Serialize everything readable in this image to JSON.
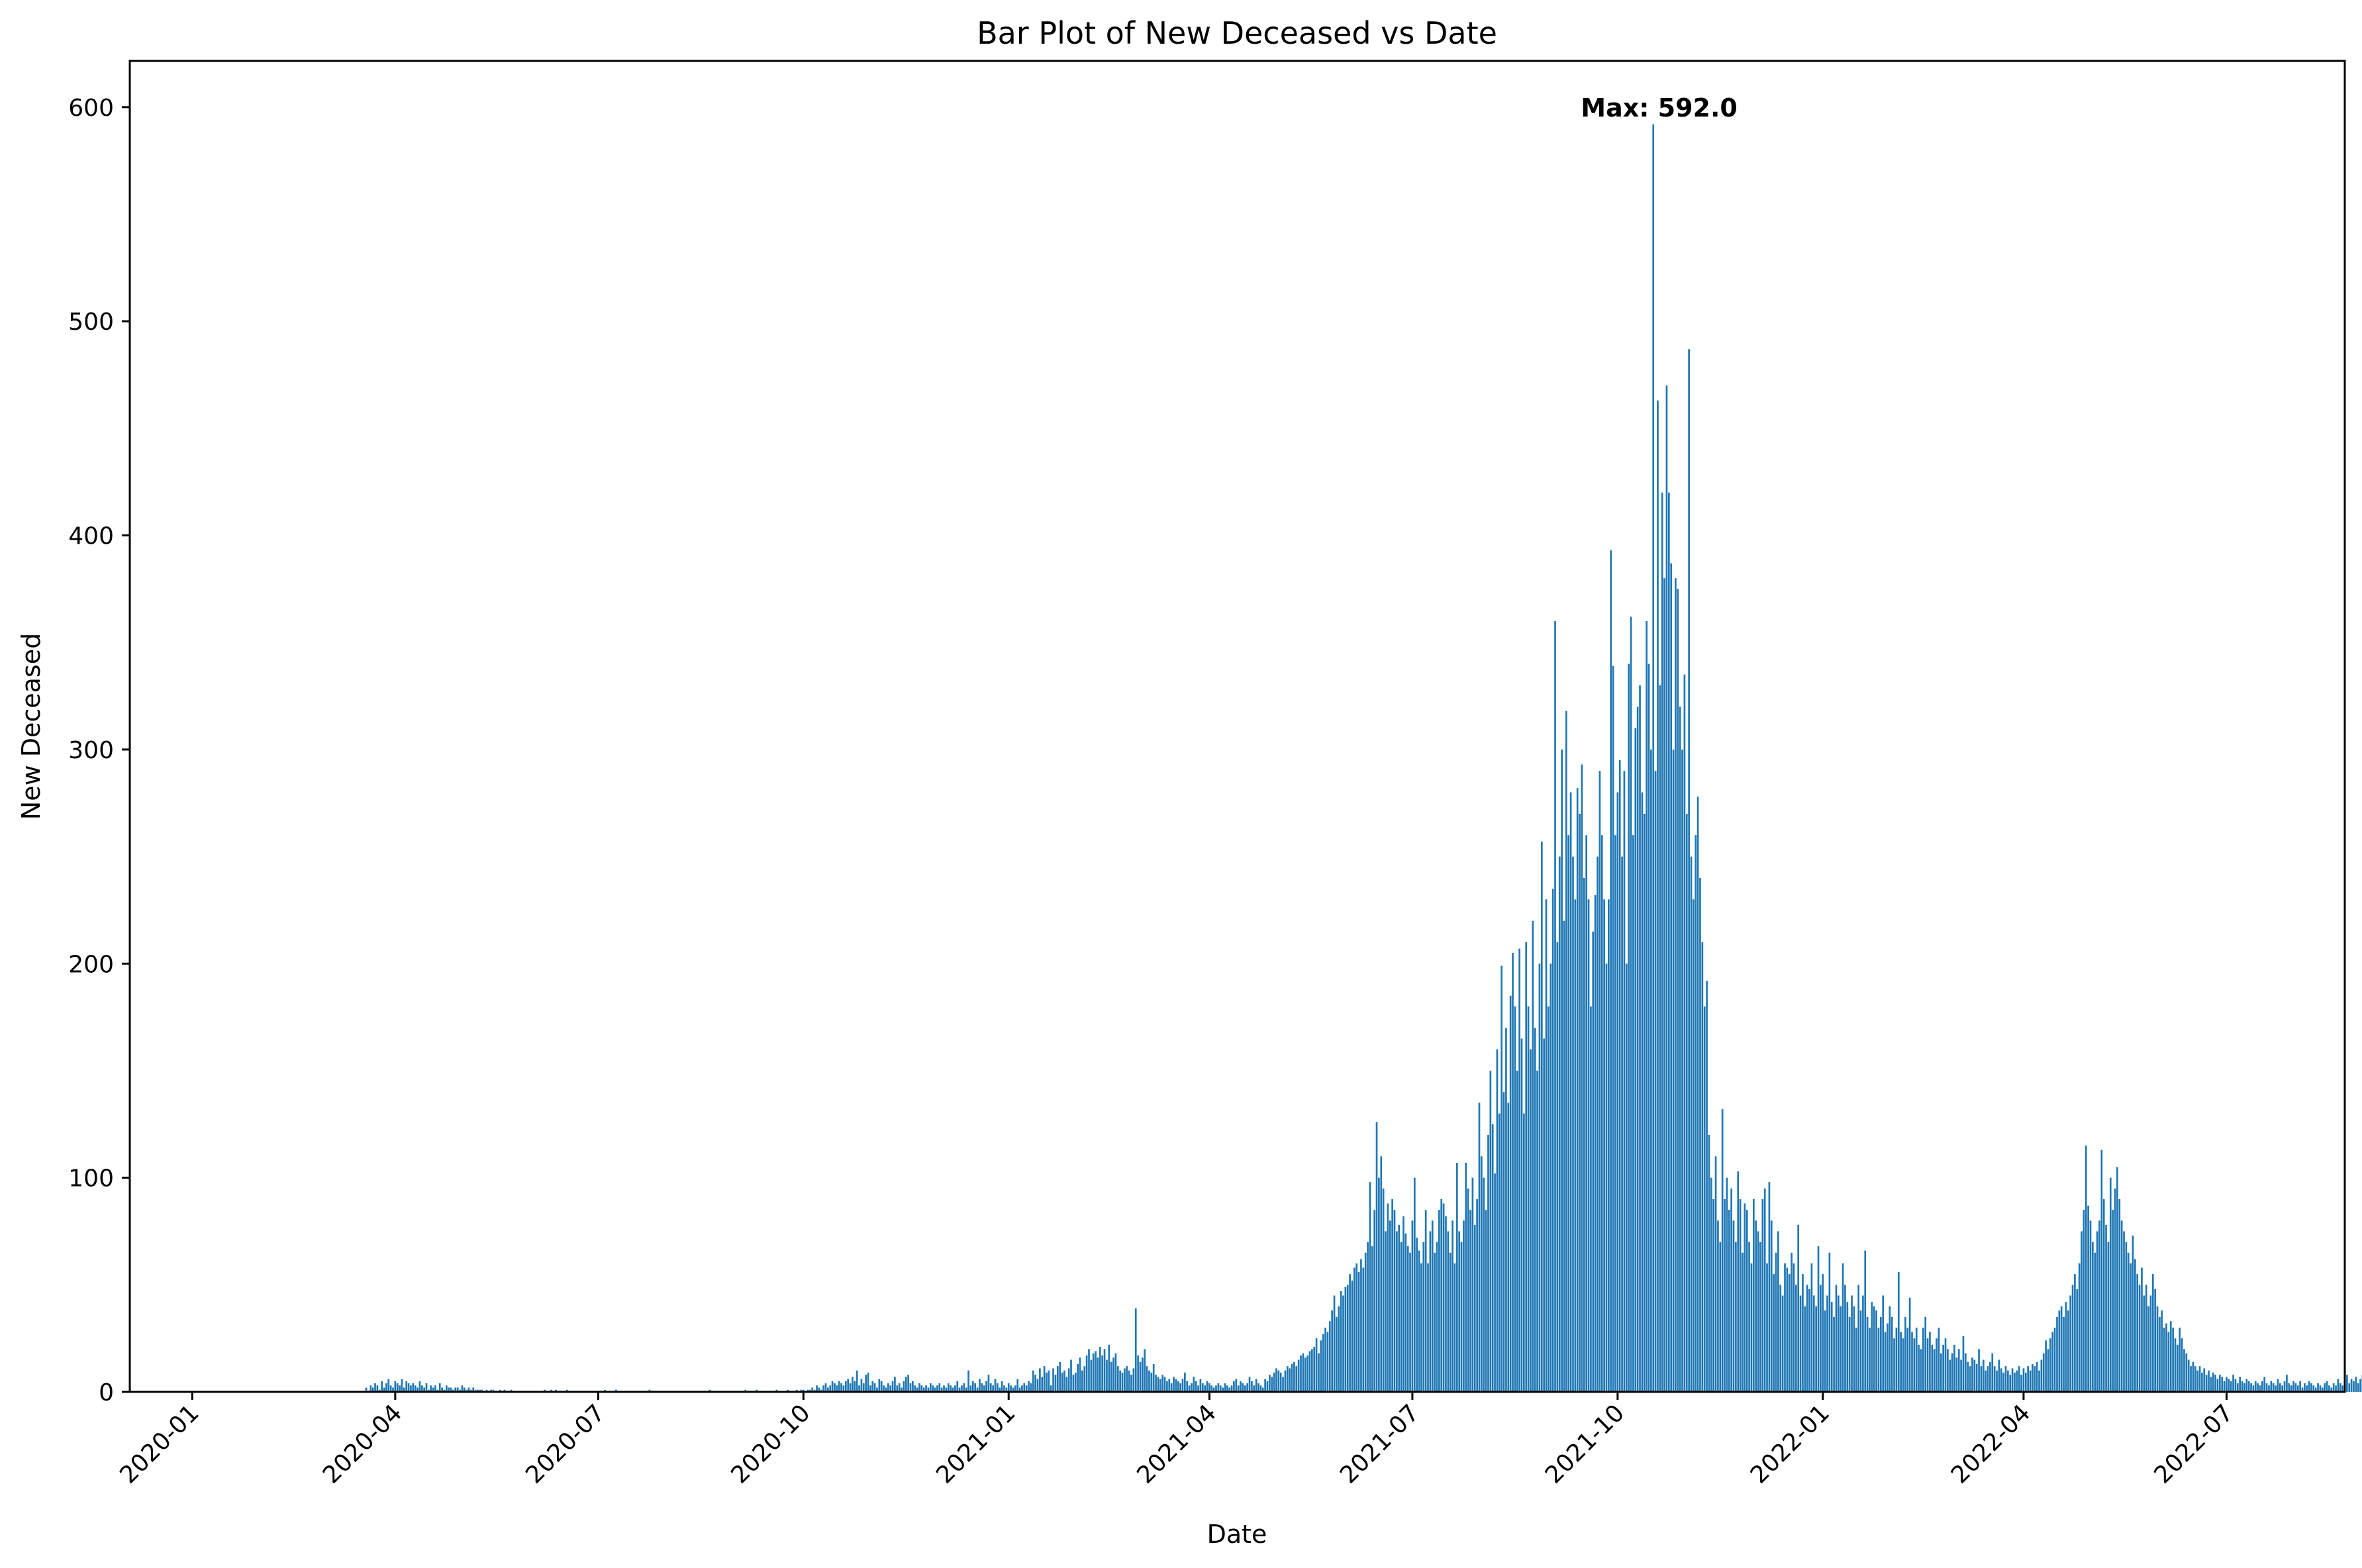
{
  "chart_data": {
    "type": "bar",
    "title": "Bar Plot of New Deceased vs Date",
    "xlabel": "Date",
    "ylabel": "New Deceased",
    "x_start": "2020-01-01",
    "x_end": "2022-07-24",
    "x_range": [
      "2019-12-04",
      "2022-08-23"
    ],
    "ylim": [
      0,
      621.6
    ],
    "y_ticks": [
      0,
      100,
      200,
      300,
      400,
      500,
      600
    ],
    "x_ticks": [
      "2020-01",
      "2020-04",
      "2020-07",
      "2020-10",
      "2021-01",
      "2021-04",
      "2021-07",
      "2021-10",
      "2022-01",
      "2022-04",
      "2022-07"
    ],
    "x_tick_dates": [
      "2020-01-01",
      "2020-04-01",
      "2020-07-01",
      "2020-10-01",
      "2021-01-01",
      "2021-04-01",
      "2021-07-01",
      "2021-10-01",
      "2022-01-01",
      "2022-04-01",
      "2022-07-01"
    ],
    "x_tick_rotation": 45,
    "grid": false,
    "bar_color": "#1f77b4",
    "annotation": {
      "text": "Max: 592.0",
      "color": "#ff0000",
      "x": "2021-09-14",
      "y": 600,
      "bold": true
    },
    "max": {
      "date": "2021-09-14",
      "value": 592.0
    },
    "series": [
      {
        "values": [
          0,
          0,
          0,
          0,
          0,
          0,
          0,
          0,
          0,
          0,
          0,
          0,
          0,
          0,
          0,
          0,
          0,
          0,
          0,
          0,
          0,
          0,
          0,
          0,
          0,
          0,
          0,
          0,
          0,
          0,
          0,
          0,
          0,
          0,
          0,
          0,
          0,
          0,
          0,
          0,
          0,
          0,
          0,
          0,
          0,
          0,
          0,
          0,
          0,
          0,
          0,
          0,
          0,
          0,
          0,
          0,
          0,
          0,
          0,
          0,
          0,
          0,
          0,
          0,
          0,
          0,
          0,
          0,
          0,
          0,
          0,
          0,
          0,
          0,
          0,
          0,
          0,
          0,
          2,
          0,
          3,
          2,
          4,
          3,
          1,
          5,
          2,
          4,
          6,
          3,
          2,
          5,
          4,
          3,
          6,
          2,
          5,
          4,
          3,
          4,
          3,
          2,
          5,
          3,
          2,
          4,
          1,
          3,
          2,
          3,
          1,
          4,
          2,
          1,
          3,
          2,
          2,
          1,
          2,
          2,
          1,
          3,
          2,
          1,
          2,
          1,
          2,
          1,
          1,
          1,
          1,
          0,
          1,
          0,
          1,
          1,
          0,
          0,
          1,
          0,
          1,
          0,
          0,
          1,
          0,
          0,
          0,
          0,
          0,
          0,
          0,
          0,
          0,
          0,
          0,
          0,
          0,
          0,
          1,
          0,
          0,
          1,
          0,
          1,
          0,
          0,
          0,
          0,
          1,
          0,
          0,
          0,
          0,
          0,
          0,
          0,
          0,
          0,
          0,
          0,
          0,
          0,
          0,
          0,
          0,
          1,
          0,
          0,
          0,
          0,
          1,
          0,
          0,
          0,
          0,
          0,
          0,
          0,
          0,
          0,
          0,
          0,
          0,
          0,
          0,
          1,
          0,
          0,
          0,
          0,
          0,
          0,
          0,
          0,
          0,
          0,
          0,
          0,
          0,
          0,
          0,
          0,
          0,
          0,
          0,
          0,
          0,
          0,
          0,
          0,
          0,
          0,
          1,
          0,
          0,
          0,
          0,
          0,
          0,
          0,
          0,
          0,
          0,
          0,
          0,
          0,
          0,
          0,
          1,
          0,
          0,
          0,
          0,
          1,
          0,
          0,
          0,
          0,
          0,
          0,
          0,
          0,
          1,
          0,
          0,
          0,
          0,
          1,
          0,
          0,
          0,
          1,
          0,
          1,
          1,
          0,
          1,
          1,
          2,
          1,
          3,
          2,
          1,
          3,
          4,
          2,
          3,
          5,
          4,
          3,
          5,
          4,
          3,
          5,
          6,
          4,
          7,
          5,
          10,
          3,
          6,
          4,
          8,
          9,
          3,
          5,
          4,
          2,
          6,
          5,
          3,
          2,
          4,
          3,
          5,
          7,
          3,
          4,
          2,
          5,
          7,
          8,
          4,
          5,
          3,
          2,
          4,
          3,
          2,
          3,
          2,
          4,
          3,
          2,
          3,
          4,
          2,
          3,
          2,
          4,
          3,
          2,
          3,
          5,
          2,
          3,
          4,
          2,
          10,
          3,
          5,
          4,
          2,
          6,
          4,
          3,
          5,
          8,
          4,
          3,
          6,
          4,
          2,
          5,
          3,
          2,
          4,
          3,
          2,
          3,
          6,
          2,
          3,
          4,
          3,
          5,
          4,
          10,
          8,
          6,
          11,
          7,
          12,
          9,
          10,
          3,
          11,
          8,
          12,
          14,
          9,
          10,
          7,
          11,
          15,
          8,
          9,
          13,
          16,
          10,
          12,
          17,
          20,
          15,
          18,
          19,
          16,
          21,
          17,
          20,
          15,
          22,
          14,
          16,
          18,
          12,
          10,
          9,
          11,
          12,
          10,
          8,
          11,
          39,
          17,
          14,
          16,
          20,
          12,
          10,
          9,
          13,
          8,
          7,
          6,
          8,
          7,
          5,
          6,
          4,
          7,
          6,
          5,
          4,
          6,
          9,
          5,
          3,
          4,
          7,
          5,
          3,
          6,
          4,
          3,
          5,
          4,
          3,
          2,
          3,
          4,
          3,
          2,
          4,
          3,
          2,
          3,
          5,
          6,
          3,
          5,
          4,
          3,
          4,
          7,
          5,
          3,
          6,
          4,
          3,
          2,
          6,
          5,
          8,
          7,
          9,
          11,
          10,
          9,
          7,
          10,
          12,
          11,
          13,
          14,
          12,
          15,
          17,
          18,
          16,
          17,
          19,
          20,
          21,
          25,
          18,
          24,
          27,
          30,
          28,
          33,
          38,
          45,
          35,
          40,
          47,
          45,
          49,
          50,
          55,
          52,
          58,
          60,
          56,
          62,
          58,
          65,
          70,
          98,
          68,
          85,
          126,
          100,
          110,
          95,
          75,
          88,
          80,
          90,
          85,
          75,
          78,
          70,
          82,
          74,
          68,
          65,
          80,
          100,
          72,
          66,
          60,
          70,
          85,
          60,
          75,
          80,
          65,
          70,
          85,
          90,
          88,
          82,
          75,
          65,
          80,
          60,
          107,
          75,
          70,
          80,
          107,
          95,
          85,
          100,
          78,
          90,
          135,
          110,
          100,
          85,
          120,
          150,
          125,
          102,
          160,
          130,
          199,
          140,
          170,
          135,
          185,
          205,
          180,
          150,
          207,
          165,
          130,
          210,
          180,
          160,
          220,
          170,
          150,
          200,
          257,
          165,
          230,
          180,
          200,
          235,
          360,
          210,
          250,
          300,
          220,
          318,
          260,
          280,
          250,
          230,
          282,
          270,
          293,
          240,
          260,
          230,
          180,
          215,
          232,
          250,
          290,
          260,
          230,
          200,
          230,
          393,
          339,
          260,
          280,
          295,
          250,
          290,
          200,
          340,
          362,
          260,
          310,
          320,
          330,
          280,
          270,
          360,
          340,
          300,
          592,
          290,
          463,
          330,
          420,
          380,
          470,
          420,
          387,
          300,
          380,
          375,
          320,
          300,
          335,
          270,
          487,
          250,
          230,
          260,
          278,
          240,
          210,
          180,
          192,
          120,
          100,
          90,
          110,
          80,
          70,
          132,
          90,
          100,
          85,
          95,
          80,
          70,
          103,
          90,
          65,
          88,
          85,
          70,
          60,
          90,
          80,
          75,
          70,
          90,
          95,
          60,
          98,
          80,
          55,
          65,
          75,
          50,
          45,
          60,
          58,
          55,
          65,
          60,
          50,
          78,
          45,
          55,
          40,
          50,
          48,
          60,
          45,
          40,
          68,
          50,
          55,
          38,
          45,
          65,
          42,
          35,
          50,
          45,
          40,
          60,
          50,
          42,
          35,
          45,
          40,
          30,
          50,
          38,
          45,
          66,
          35,
          30,
          42,
          40,
          38,
          30,
          35,
          45,
          28,
          32,
          40,
          35,
          25,
          30,
          56,
          28,
          25,
          35,
          30,
          44,
          28,
          25,
          30,
          22,
          20,
          30,
          35,
          25,
          28,
          22,
          20,
          25,
          30,
          18,
          22,
          25,
          20,
          15,
          18,
          22,
          16,
          20,
          15,
          26,
          18,
          14,
          12,
          16,
          15,
          13,
          20,
          12,
          15,
          10,
          12,
          14,
          18,
          12,
          10,
          15,
          11,
          9,
          12,
          10,
          8,
          11,
          9,
          10,
          12,
          8,
          11,
          9,
          12,
          10,
          13,
          12,
          14,
          10,
          15,
          18,
          24,
          20,
          25,
          28,
          30,
          35,
          38,
          40,
          35,
          42,
          38,
          45,
          50,
          55,
          48,
          60,
          75,
          85,
          115,
          87,
          80,
          70,
          65,
          75,
          80,
          113,
          90,
          78,
          70,
          100,
          85,
          95,
          105,
          90,
          80,
          75,
          70,
          65,
          60,
          73,
          62,
          55,
          50,
          58,
          45,
          50,
          40,
          45,
          55,
          48,
          40,
          35,
          38,
          30,
          32,
          28,
          33,
          30,
          25,
          22,
          30,
          25,
          20,
          18,
          15,
          12,
          14,
          12,
          10,
          12,
          9,
          11,
          8,
          10,
          7,
          9,
          8,
          6,
          8,
          7,
          5,
          7,
          6,
          5,
          8,
          6,
          4,
          7,
          5,
          4,
          6,
          5,
          4,
          3,
          5,
          4,
          3,
          5,
          7,
          4,
          3,
          5,
          4,
          3,
          6,
          4,
          3,
          5,
          8,
          4,
          3,
          5,
          4,
          3,
          5,
          2,
          4,
          3,
          5,
          4,
          3,
          2,
          4,
          3,
          2,
          4,
          5,
          3,
          2,
          4,
          3,
          6,
          4,
          3,
          5,
          8,
          4,
          6,
          5,
          7,
          4,
          6,
          8,
          5,
          7,
          6,
          8,
          5,
          9,
          6,
          7,
          8,
          10,
          7,
          9,
          8,
          11,
          13,
          9,
          8
        ]
      }
    ]
  }
}
